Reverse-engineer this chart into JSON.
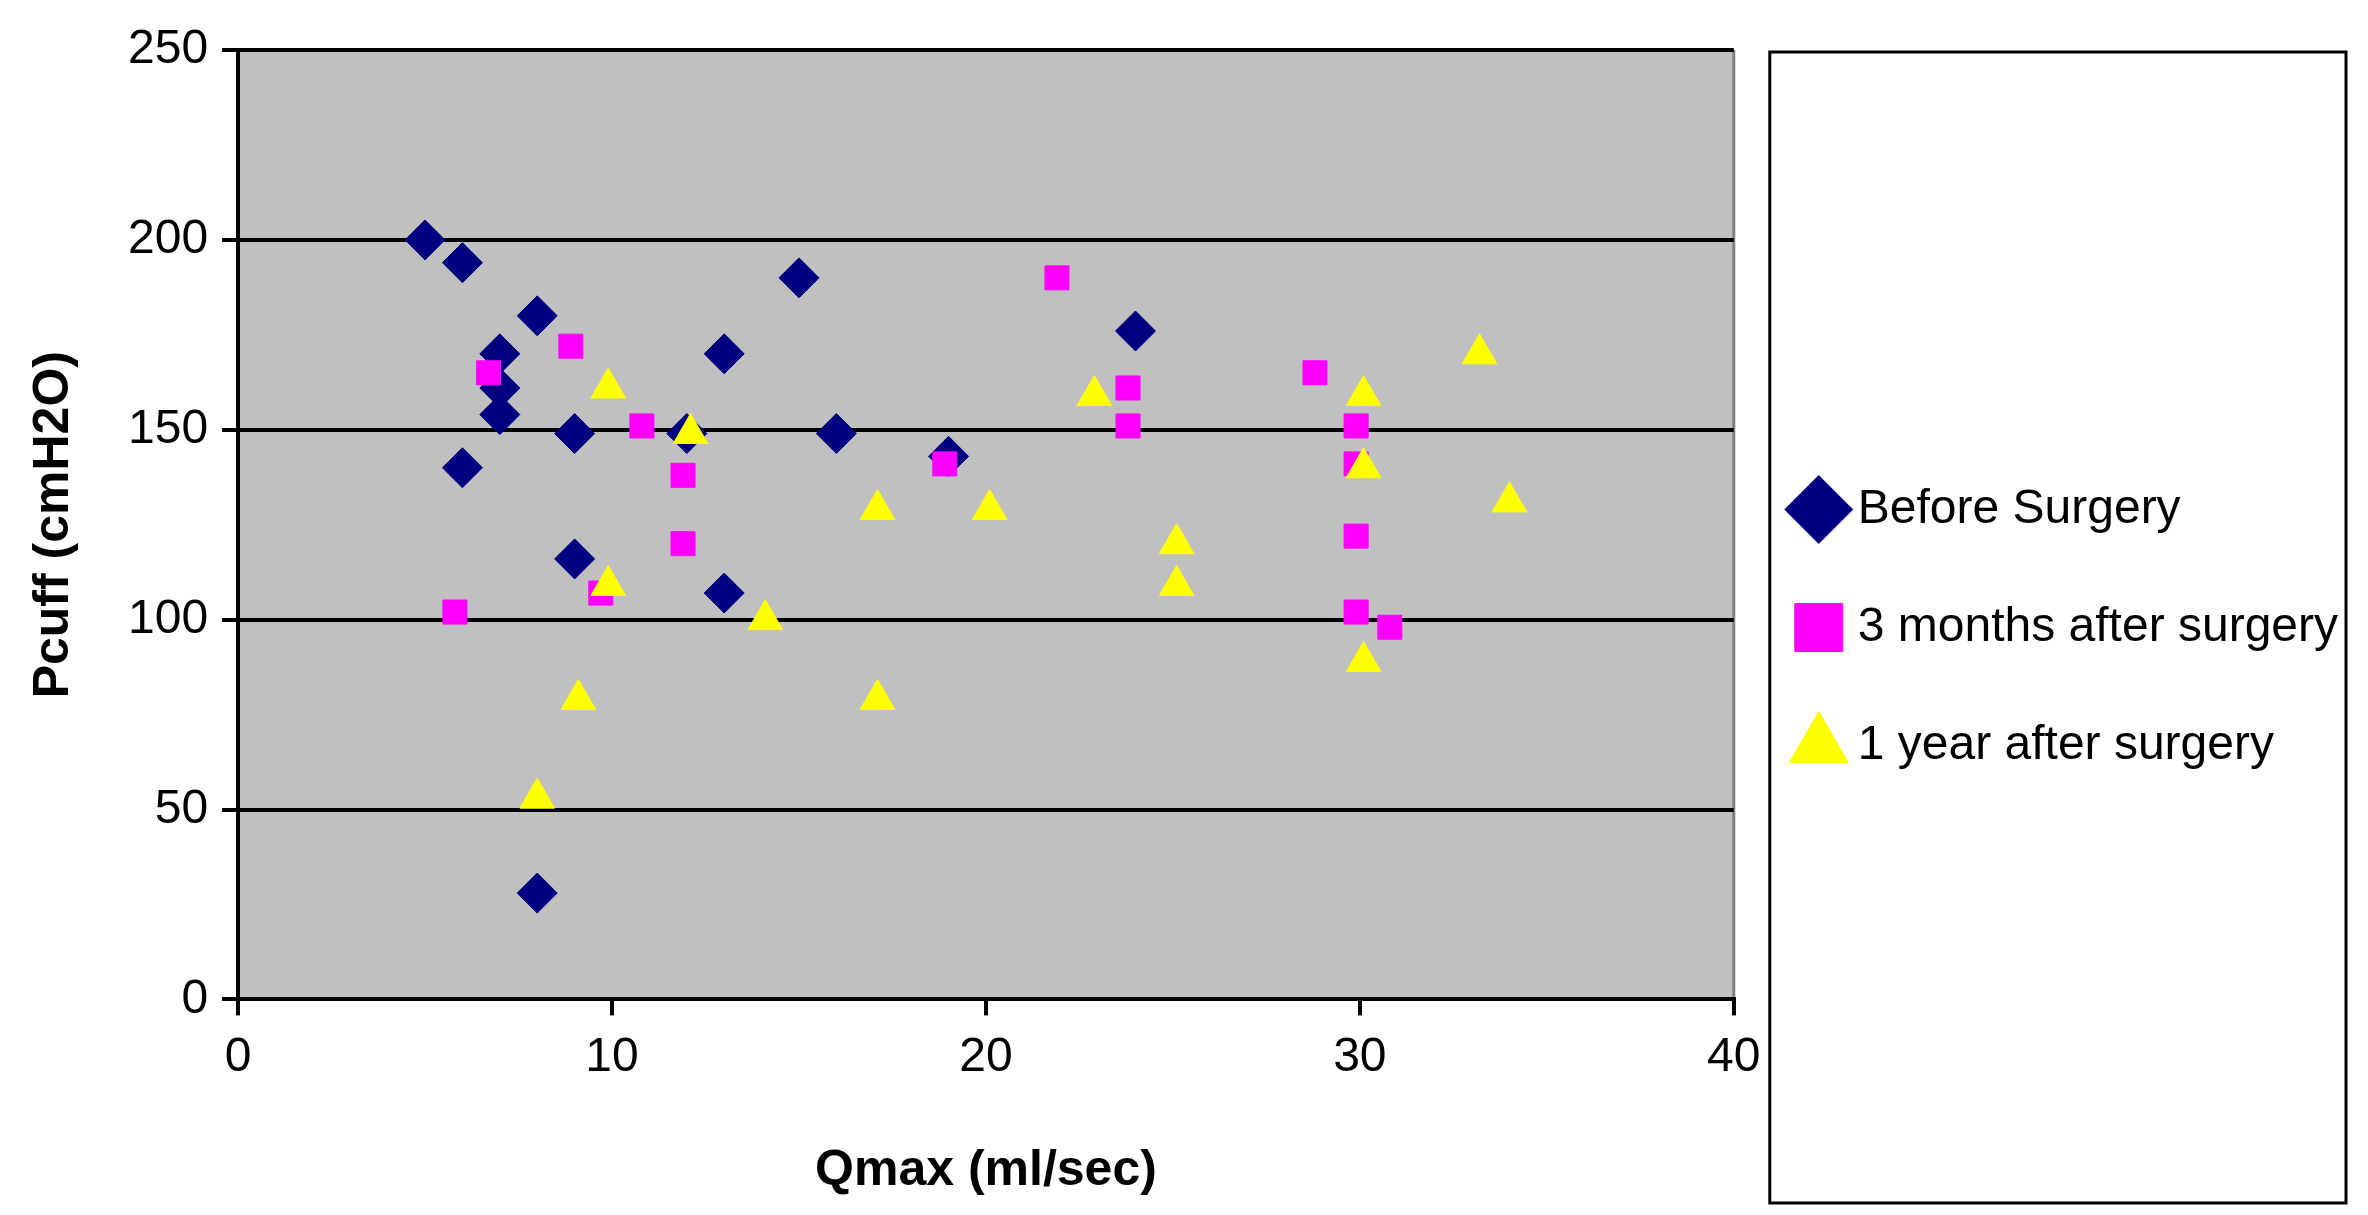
{
  "chart_data": {
    "type": "scatter",
    "xlabel": "Qmax (ml/sec)",
    "ylabel": "Pcuff (cmH2O)",
    "xlim": [
      0,
      40
    ],
    "xticks": [
      0,
      10,
      20,
      30,
      40
    ],
    "ylim": [
      0,
      250
    ],
    "yticks": [
      0,
      50,
      100,
      150,
      200,
      250
    ],
    "grid": "y",
    "legend": "right",
    "series": [
      {
        "name": "Before Surgery",
        "color": "#000080",
        "marker": "diamond",
        "x": [
          5,
          6,
          6,
          7,
          7,
          7,
          8,
          9,
          9,
          8,
          12,
          13,
          13,
          15,
          16,
          19,
          24
        ],
        "values": [
          200,
          194,
          140,
          170,
          161,
          154,
          180,
          149,
          116,
          28,
          149,
          170,
          107,
          190,
          149,
          143,
          176
        ]
      },
      {
        "name": "3 months after surgery",
        "color": "#ff00ff",
        "marker": "square",
        "x": [
          6.7,
          8.9,
          10.8,
          11.9,
          11.9,
          9.7,
          5.8,
          18.9,
          21.9,
          23.8,
          23.8,
          28.8,
          29.9,
          29.9,
          29.9,
          29.9,
          30.8
        ],
        "values": [
          165,
          172,
          151,
          138,
          120,
          107,
          102,
          141,
          190,
          161,
          151,
          165,
          151,
          141,
          122,
          102,
          98
        ]
      },
      {
        "name": "1 year after surgery",
        "color": "#ffff00",
        "marker": "triangle",
        "x": [
          9.9,
          12.1,
          9.9,
          14.1,
          17.1,
          20.1,
          9.1,
          17.1,
          8,
          22.9,
          25.1,
          25.1,
          30.1,
          30.1,
          30.1,
          33.2,
          34
        ],
        "values": [
          161,
          149,
          109,
          100,
          129,
          129,
          79,
          79,
          53,
          159,
          120,
          109,
          159,
          140,
          89,
          170,
          131
        ]
      }
    ]
  }
}
